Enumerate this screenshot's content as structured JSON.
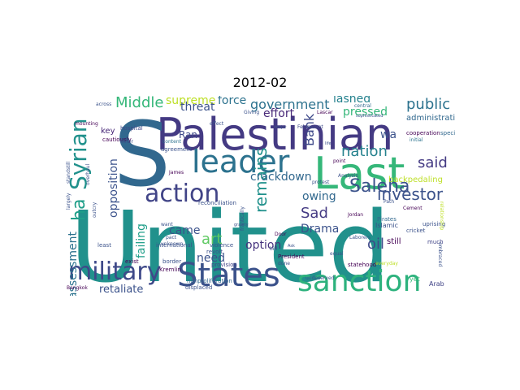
{
  "title": "2012-02",
  "words": [
    {
      "text": "United",
      "color": "#21918c"
    },
    {
      "text": "Palestinian",
      "color": "#443a83"
    },
    {
      "text": "S",
      "color": "#31688e"
    },
    {
      "text": "Last",
      "color": "#35b779"
    },
    {
      "text": "leader",
      "color": "#2c728e"
    },
    {
      "text": "States",
      "color": "#3b528b"
    },
    {
      "text": "sanction",
      "color": "#2db27d"
    },
    {
      "text": "military",
      "color": "#3e4989"
    },
    {
      "text": "action",
      "color": "#414487"
    },
    {
      "text": "Syrian",
      "color": "#21918c"
    },
    {
      "text": "government",
      "color": "#2c728e"
    },
    {
      "text": "nation",
      "color": "#26828e"
    },
    {
      "text": "Saleha",
      "color": "#3b528b"
    },
    {
      "text": "investor",
      "color": "#3b528b"
    },
    {
      "text": "Middle",
      "color": "#35b779"
    },
    {
      "text": "supreme",
      "color": "#bddf26"
    },
    {
      "text": "force",
      "color": "#2c728e"
    },
    {
      "text": "public",
      "color": "#2c728e"
    },
    {
      "text": "said",
      "color": "#443a83"
    },
    {
      "text": "remains",
      "color": "#21918c"
    },
    {
      "text": "ha",
      "color": "#1f9e89"
    },
    {
      "text": "threat",
      "color": "#3b528b"
    },
    {
      "text": "art",
      "color": "#5ec962"
    },
    {
      "text": "Sad",
      "color": "#443a83"
    },
    {
      "text": "Drama",
      "color": "#3b528b"
    },
    {
      "text": "oil",
      "color": "#3e4989"
    },
    {
      "text": "owing",
      "color": "#31688e"
    },
    {
      "text": "option",
      "color": "#46337e"
    },
    {
      "text": "crackdown",
      "color": "#31688e"
    },
    {
      "text": "lashed",
      "color": "#26828e"
    },
    {
      "text": "pressed",
      "color": "#35b779"
    },
    {
      "text": "effort",
      "color": "#482878"
    },
    {
      "text": "Bank",
      "color": "#3e4989"
    },
    {
      "text": "opposition",
      "color": "#3b528b"
    },
    {
      "text": "assessment",
      "color": "#2c728e"
    },
    {
      "text": "retaliate",
      "color": "#3b528b"
    },
    {
      "text": "came",
      "color": "#3b528b"
    },
    {
      "text": "failing",
      "color": "#1f9e89"
    },
    {
      "text": "Ran",
      "color": "#3e4989"
    },
    {
      "text": "key",
      "color": "#482878"
    },
    {
      "text": "need",
      "color": "#3b528b"
    },
    {
      "text": "wa",
      "color": "#3b528b"
    },
    {
      "text": "backpedaling",
      "color": "#bddf26"
    },
    {
      "text": "administration",
      "color": "#31688e"
    },
    {
      "text": "cooperation",
      "color": "#440154"
    },
    {
      "text": "specific",
      "color": "#31688e"
    },
    {
      "text": "initial",
      "color": "#2c728e"
    },
    {
      "text": "central",
      "color": "#31688e"
    },
    {
      "text": "Cement",
      "color": "#440154"
    },
    {
      "text": "Islamic",
      "color": "#3b528b"
    },
    {
      "text": "still",
      "color": "#440154"
    },
    {
      "text": "uprising",
      "color": "#3b528b"
    },
    {
      "text": "much",
      "color": "#414487"
    },
    {
      "text": "Arab",
      "color": "#414487"
    },
    {
      "text": "yet",
      "color": "#35b779"
    },
    {
      "text": "Pirates",
      "color": "#31688e"
    },
    {
      "text": "cricket",
      "color": "#3b528b"
    },
    {
      "text": "statehood",
      "color": "#440154"
    },
    {
      "text": "equal",
      "color": "#3b528b"
    },
    {
      "text": "President",
      "color": "#440154"
    },
    {
      "text": "undeserved",
      "color": "#3b528b"
    },
    {
      "text": "nonproliferation",
      "color": "#31688e"
    },
    {
      "text": "displaced",
      "color": "#3b528b"
    },
    {
      "text": "provision",
      "color": "#414487"
    },
    {
      "text": "revolt",
      "color": "#3b528b"
    },
    {
      "text": "violence",
      "color": "#3b528b"
    },
    {
      "text": "international",
      "color": "#3b528b"
    },
    {
      "text": "border",
      "color": "#3b528b"
    },
    {
      "text": "unknown",
      "color": "#3b528b"
    },
    {
      "text": "Kremlin",
      "color": "#440154"
    },
    {
      "text": "exist",
      "color": "#440154"
    },
    {
      "text": "least",
      "color": "#3b528b"
    },
    {
      "text": "hospital",
      "color": "#3e4989"
    },
    {
      "text": "cautiously",
      "color": "#440154"
    },
    {
      "text": "agreement",
      "color": "#3b528b"
    },
    {
      "text": "reconciliation",
      "color": "#3b528b"
    },
    {
      "text": "content",
      "color": "#2c728e"
    },
    {
      "text": "James",
      "color": "#440154"
    },
    {
      "text": "outer",
      "color": "#3b528b"
    },
    {
      "text": "outcry",
      "color": "#3b528b"
    },
    {
      "text": "across",
      "color": "#3b528b"
    },
    {
      "text": "mounting",
      "color": "#440154"
    },
    {
      "text": "Bangkok",
      "color": "#440154"
    },
    {
      "text": "frantically",
      "color": "#3b528b"
    },
    {
      "text": "Door",
      "color": "#440154"
    },
    {
      "text": "done",
      "color": "#3b528b"
    },
    {
      "text": "Jordan",
      "color": "#440154"
    },
    {
      "text": "Laborers",
      "color": "#3b528b"
    },
    {
      "text": "Path",
      "color": "#3b528b"
    },
    {
      "text": "point",
      "color": "#440154"
    },
    {
      "text": "Analysis",
      "color": "#3b528b"
    },
    {
      "text": "Lascar",
      "color": "#440154"
    },
    {
      "text": "Feldmount",
      "color": "#3e4989"
    },
    {
      "text": "Giving",
      "color": "#3b528b"
    },
    {
      "text": "everyday",
      "color": "#bddf26"
    },
    {
      "text": "relationship",
      "color": "#bddf26"
    },
    {
      "text": "embraced",
      "color": "#3b528b"
    },
    {
      "text": "sophisticated",
      "color": "#3b528b"
    },
    {
      "text": "standstill",
      "color": "#3b528b"
    },
    {
      "text": "largely",
      "color": "#3b528b"
    },
    {
      "text": "overhaul",
      "color": "#3b528b"
    },
    {
      "text": "life",
      "color": "#3b528b"
    },
    {
      "text": "gravity",
      "color": "#3b528b"
    },
    {
      "text": "bid",
      "color": "#3b528b"
    },
    {
      "text": "pact",
      "color": "#3b528b"
    },
    {
      "text": "want",
      "color": "#3b528b"
    },
    {
      "text": "company",
      "color": "#bddf26"
    },
    {
      "text": "major",
      "color": "#3b528b"
    },
    {
      "text": "protest",
      "color": "#3b528b"
    },
    {
      "text": "effect",
      "color": "#3b528b"
    },
    {
      "text": "Ask",
      "color": "#3b528b"
    }
  ]
}
